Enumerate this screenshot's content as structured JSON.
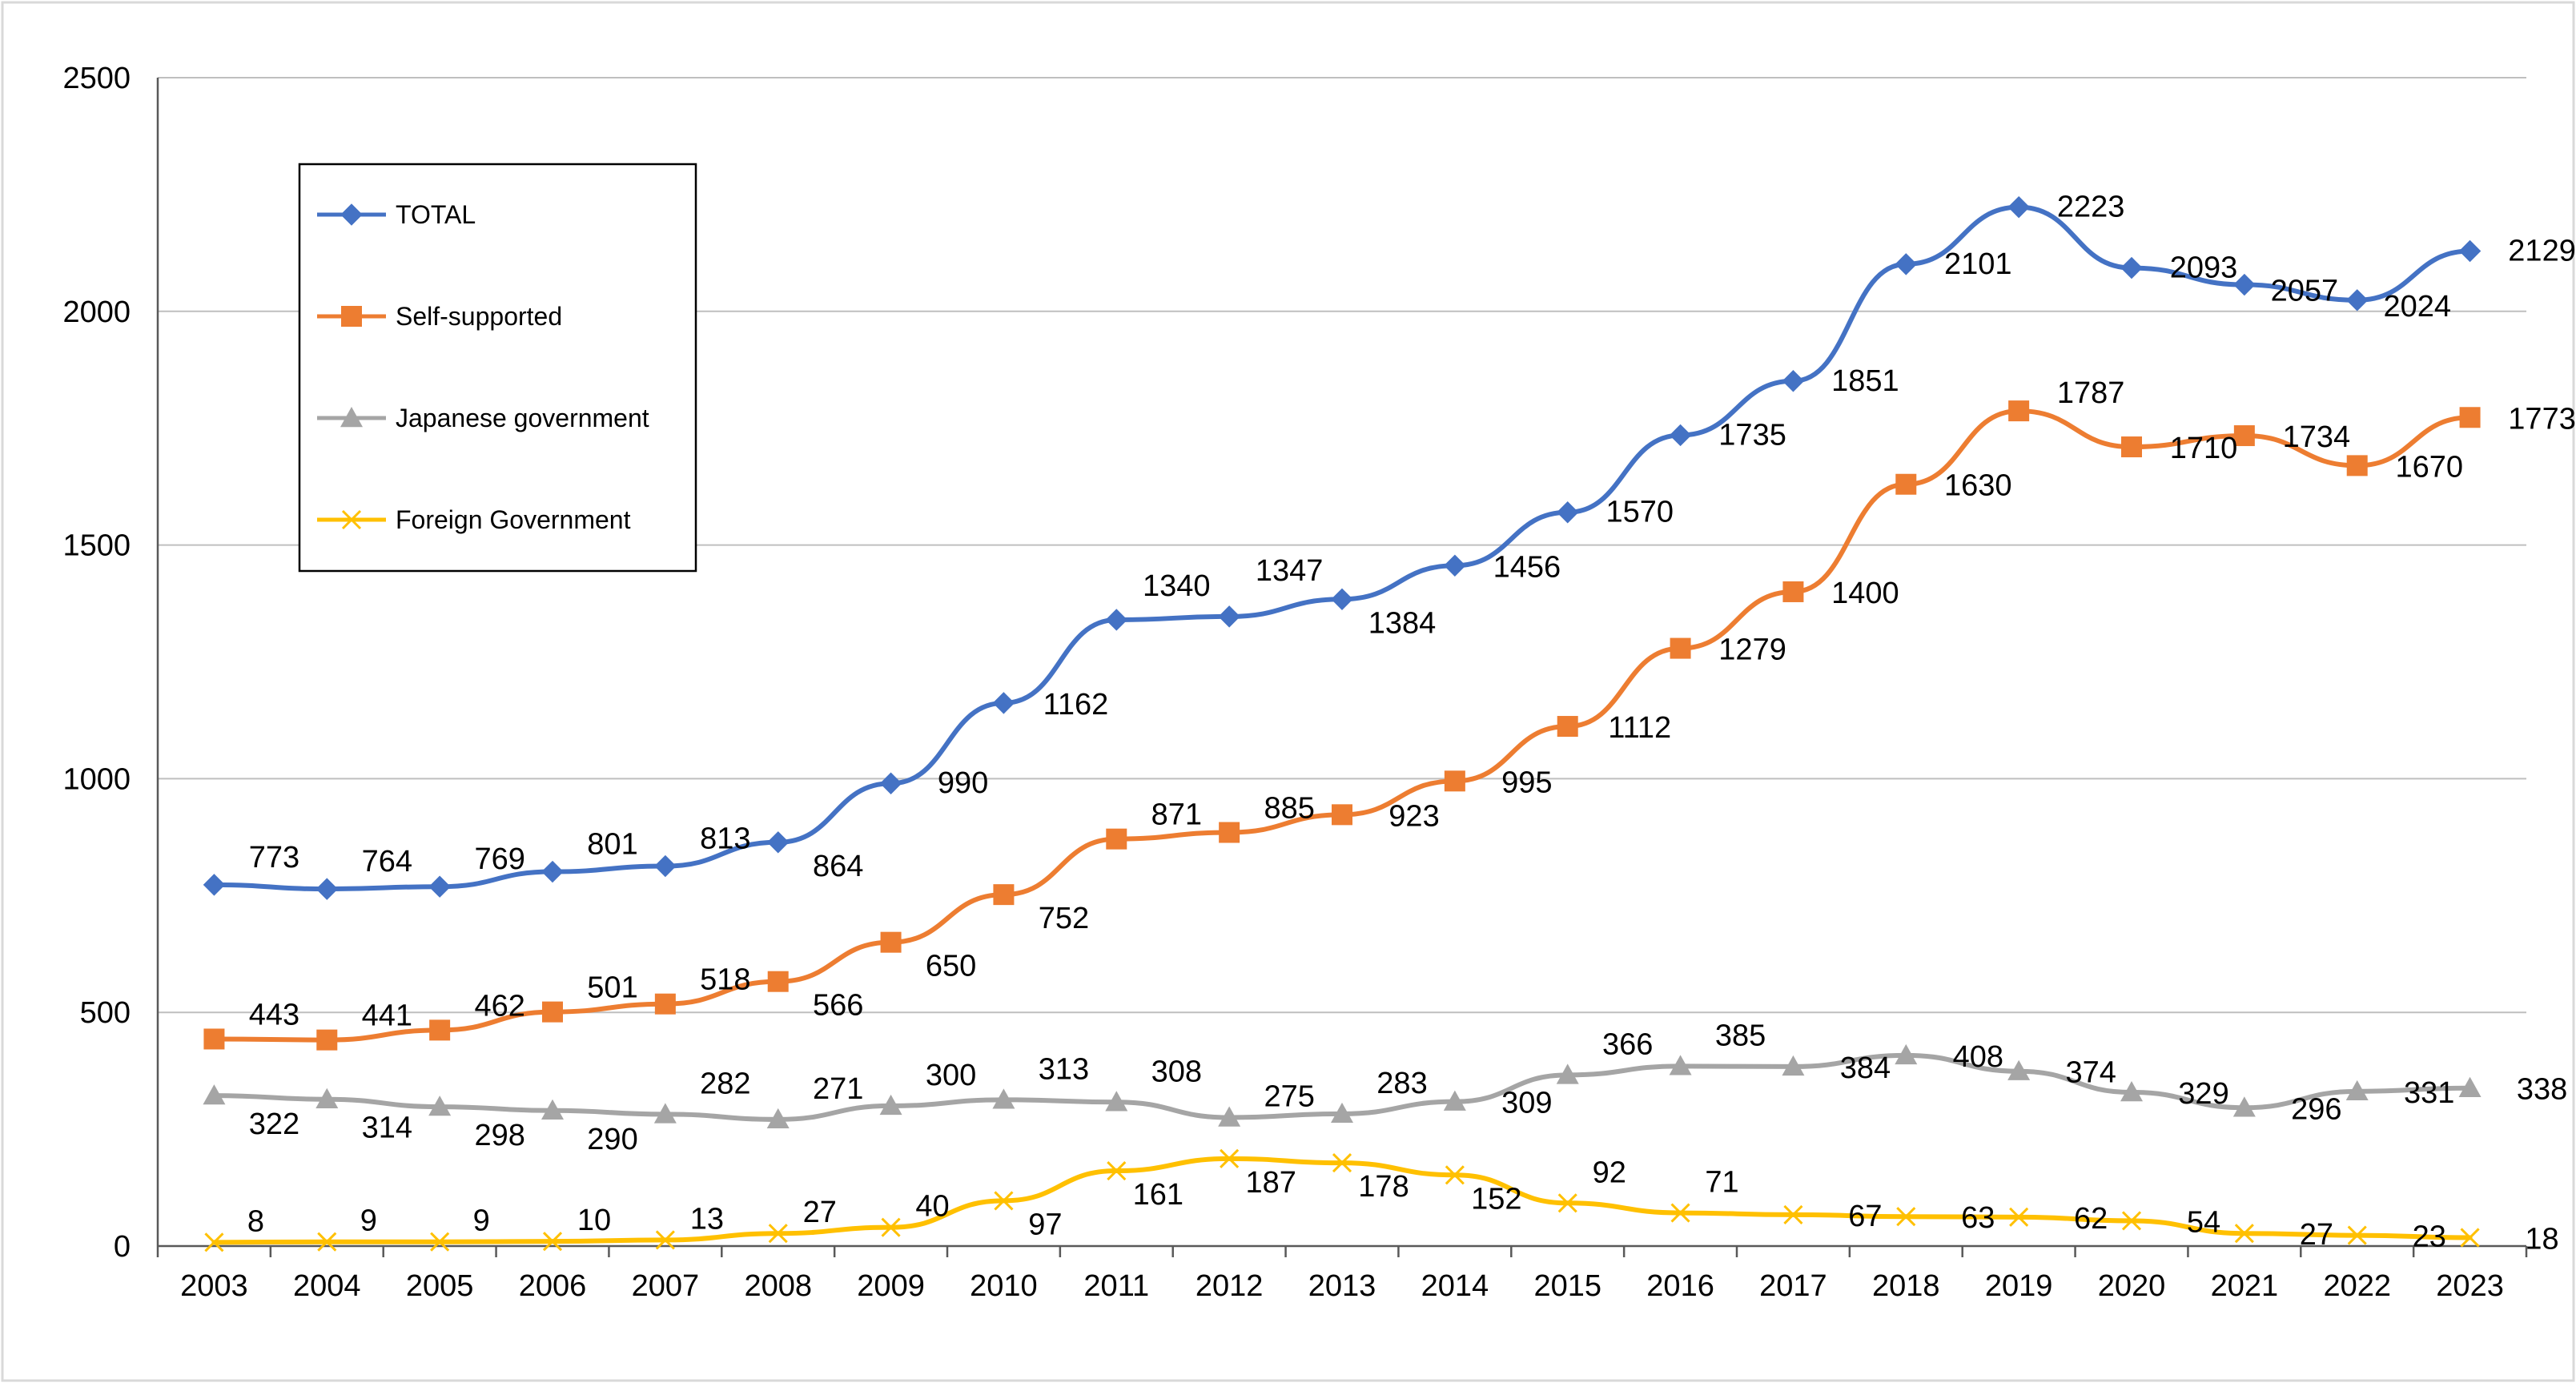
{
  "chart_data": {
    "type": "line",
    "title": "",
    "xlabel": "",
    "ylabel": "",
    "categories": [
      "2003",
      "2004",
      "2005",
      "2006",
      "2007",
      "2008",
      "2009",
      "2010",
      "2011",
      "2012",
      "2013",
      "2014",
      "2015",
      "2016",
      "2017",
      "2018",
      "2019",
      "2020",
      "2021",
      "2022",
      "2023"
    ],
    "ylim": [
      0,
      2500
    ],
    "yticks": [
      0,
      500,
      1000,
      1500,
      2000,
      2500
    ],
    "grid": true,
    "legend_position": "top-left",
    "series": [
      {
        "name": "TOTAL",
        "color": "#4472C4",
        "marker": "diamond",
        "values": [
          773,
          764,
          769,
          801,
          813,
          864,
          990,
          1162,
          1340,
          1347,
          1384,
          1456,
          1570,
          1735,
          1851,
          2101,
          2223,
          2093,
          2057,
          2024,
          2129
        ]
      },
      {
        "name": "Self-supported",
        "color": "#ED7D31",
        "marker": "square",
        "values": [
          443,
          441,
          462,
          501,
          518,
          566,
          650,
          752,
          871,
          885,
          923,
          995,
          1112,
          1279,
          1400,
          1630,
          1787,
          1710,
          1734,
          1670,
          1773
        ]
      },
      {
        "name": "Japanese government",
        "color": "#A5A5A5",
        "marker": "triangle",
        "values": [
          322,
          314,
          298,
          290,
          282,
          271,
          300,
          313,
          308,
          275,
          283,
          309,
          366,
          385,
          384,
          408,
          374,
          329,
          296,
          331,
          338
        ]
      },
      {
        "name": "Foreign Government",
        "color": "#FFC000",
        "marker": "x",
        "values": [
          8,
          9,
          9,
          10,
          13,
          27,
          40,
          97,
          161,
          187,
          178,
          152,
          92,
          71,
          67,
          63,
          62,
          54,
          27,
          23,
          18
        ]
      }
    ]
  }
}
